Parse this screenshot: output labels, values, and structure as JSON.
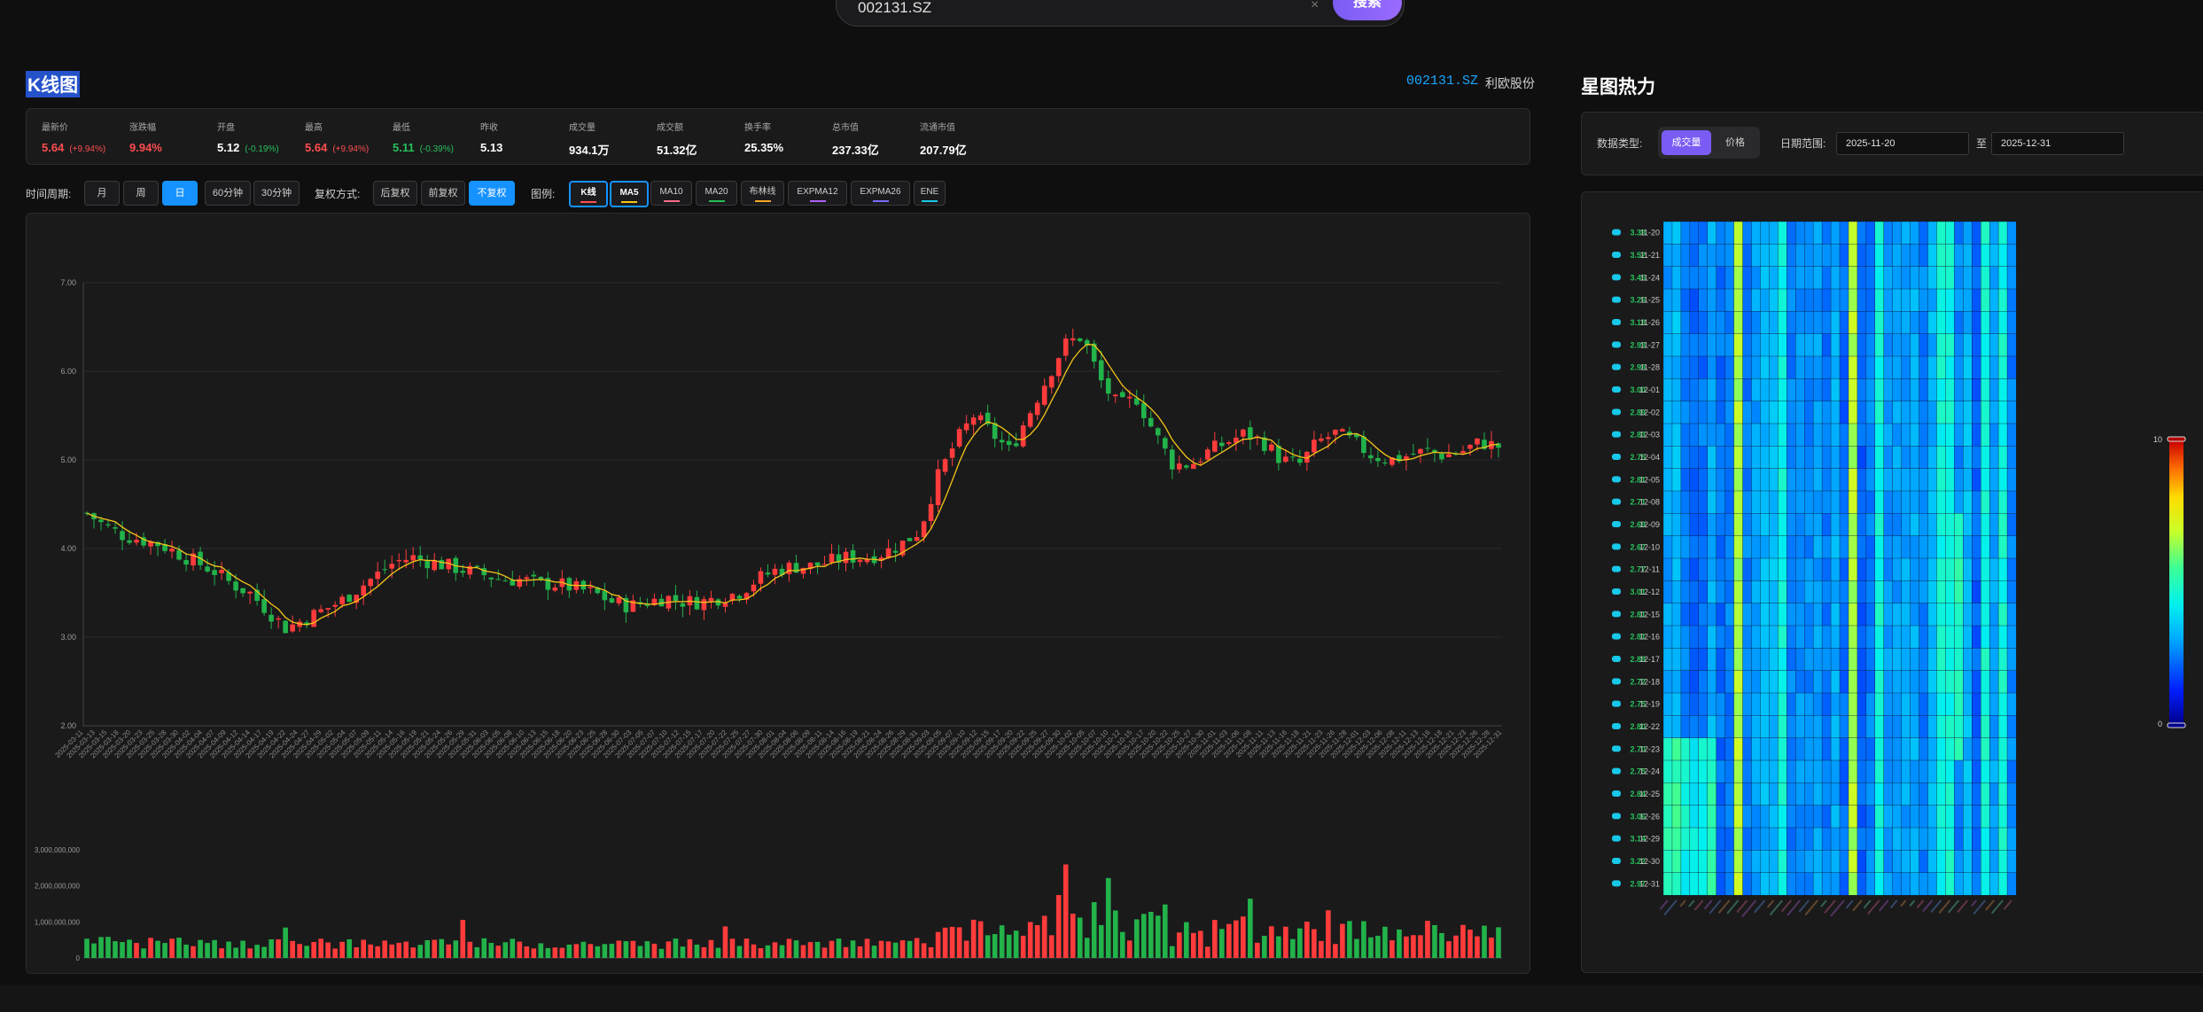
{
  "search": {
    "value": "002131.SZ",
    "clear": "×",
    "button": "搜索"
  },
  "kline": {
    "title": "K线图",
    "code": "002131.SZ",
    "name": "利欧股份",
    "stats": [
      {
        "label": "最新价",
        "value": "5.64",
        "change": "(+9.94%)",
        "color": "red"
      },
      {
        "label": "涨跌幅",
        "value": "9.94%",
        "change": "",
        "color": "red"
      },
      {
        "label": "开盘",
        "value": "5.12",
        "change": "(-0.19%)",
        "color": "white"
      },
      {
        "label": "最高",
        "value": "5.64",
        "change": "(+9.94%)",
        "color": "red"
      },
      {
        "label": "最低",
        "value": "5.11",
        "change": "(-0.39%)",
        "color": "green"
      },
      {
        "label": "昨收",
        "value": "5.13",
        "change": "",
        "color": "white"
      },
      {
        "label": "成交量",
        "value": "934.1万",
        "change": "",
        "color": "white"
      },
      {
        "label": "成交额",
        "value": "51.32亿",
        "change": "",
        "color": "white"
      },
      {
        "label": "换手率",
        "value": "25.35%",
        "change": "",
        "color": "white"
      },
      {
        "label": "总市值",
        "value": "237.33亿",
        "change": "",
        "color": "white"
      },
      {
        "label": "流通市值",
        "value": "207.79亿",
        "change": "",
        "color": "white"
      }
    ],
    "period_label": "时间周期:",
    "periods": [
      "月",
      "周",
      "日",
      "60分钟",
      "30分钟"
    ],
    "period_active": "日",
    "adjust_label": "复权方式:",
    "adjusts": [
      "后复权",
      "前复权",
      "不复权"
    ],
    "adjust_active": "不复权",
    "legend_label": "图例:",
    "legend": [
      {
        "name": "K线",
        "color": "#ff4d4f",
        "selected": true
      },
      {
        "name": "MA5",
        "color": "#f5c518",
        "selected": true
      },
      {
        "name": "MA10",
        "color": "#ff6b8a",
        "selected": false
      },
      {
        "name": "MA20",
        "color": "#27c05a",
        "selected": false
      },
      {
        "name": "布林线",
        "color": "#f5a623",
        "selected": false
      },
      {
        "name": "EXPMA12",
        "color": "#b061ff",
        "selected": false
      },
      {
        "name": "EXPMA26",
        "color": "#7b6bff",
        "selected": false
      },
      {
        "name": "ENE",
        "color": "#18c8e8",
        "selected": false
      }
    ]
  },
  "chart_data": [
    {
      "type": "candlestick",
      "title": "",
      "ylim": [
        2.0,
        7.0
      ],
      "yticks": [
        "2.00",
        "3.00",
        "4.00",
        "5.00",
        "6.00",
        "7.00"
      ],
      "x_start": "2025-03-11",
      "x_end": "2025-12-31",
      "close_trend": [
        4.4,
        4.25,
        4.15,
        4.1,
        4.05,
        3.95,
        3.85,
        3.75,
        3.6,
        3.5,
        3.3,
        3.1,
        3.2,
        3.3,
        3.4,
        3.55,
        3.7,
        3.85,
        3.9,
        3.85,
        3.8,
        3.75,
        3.7,
        3.65,
        3.65,
        3.6,
        3.6,
        3.55,
        3.5,
        3.4,
        3.35,
        3.4,
        3.45,
        3.4,
        3.4,
        3.45,
        3.5,
        3.65,
        3.75,
        3.8,
        3.8,
        3.85,
        3.9,
        3.9,
        3.95,
        4.05,
        4.2,
        4.8,
        5.2,
        5.5,
        5.3,
        5.1,
        5.5,
        5.9,
        6.3,
        6.4,
        5.9,
        5.6,
        5.7,
        5.3,
        4.95,
        4.95,
        5.1,
        5.2,
        5.3,
        5.2,
        5.0,
        4.95,
        5.2,
        5.3,
        5.2,
        5.05,
        5.0,
        5.05,
        5.1,
        5.05,
        5.1,
        5.2,
        5.15
      ],
      "ma5_label": "MA5",
      "volume_yticks": [
        "0",
        "1,000,000,000",
        "2,000,000,000",
        "3,000,000,000"
      ],
      "volume_max": 3000000000
    },
    {
      "type": "heatmap",
      "title": "星图热力",
      "dates": [
        "11-20",
        "11-21",
        "11-24",
        "11-25",
        "11-26",
        "11-27",
        "11-28",
        "12-01",
        "12-02",
        "12-03",
        "12-04",
        "12-05",
        "12-08",
        "12-09",
        "12-10",
        "12-11",
        "12-12",
        "12-15",
        "12-16",
        "12-17",
        "12-18",
        "12-19",
        "12-22",
        "12-23",
        "12-24",
        "12-25",
        "12-26",
        "12-29",
        "12-30",
        "12-31"
      ],
      "row_values": [
        "3.38",
        "3.52",
        "3.45",
        "3.26",
        "3.18",
        "2.93",
        "2.98",
        "3.00",
        "2.89",
        "2.83",
        "2.75",
        "2.81",
        "2.71",
        "2.69",
        "2.67",
        "2.77",
        "3.01",
        "2.81",
        "2.81",
        "2.89",
        "2.72",
        "2.75",
        "2.80",
        "2.70",
        "2.75",
        "2.84",
        "3.06",
        "3.14",
        "3.22",
        "2.97"
      ],
      "columns": 40,
      "scale_min": "0",
      "scale_max": "10"
    }
  ],
  "heat": {
    "title": "星图热力",
    "type_label": "数据类型:",
    "types": [
      "成交量",
      "价格"
    ],
    "type_active": "成交量",
    "range_label": "日期范围:",
    "start": "2025-11-20",
    "to": "至",
    "end": "2025-12-31"
  },
  "colors": {
    "up": "#ff3b3b",
    "down": "#22b34a",
    "accent": "#1592ff",
    "purple": "#7a5cf4"
  }
}
